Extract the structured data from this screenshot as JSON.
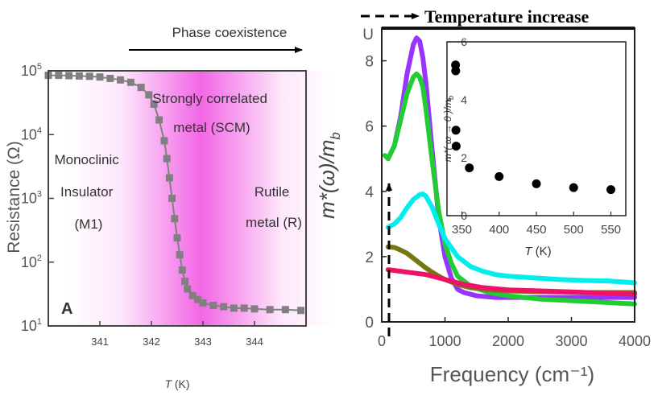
{
  "chart_data": [
    {
      "type": "line",
      "panel_label": "A",
      "xlabel": "T (K)",
      "xlabel_var": "T",
      "xlabel_unit": "(K)",
      "ylabel": "Resistance (Ω)",
      "xlim": [
        340.0,
        345.0
      ],
      "ylim_log10": [
        1,
        5
      ],
      "yscale": "log",
      "x_ticks": [
        341,
        342,
        343,
        344
      ],
      "y_ticks": [
        {
          "value": 100000,
          "base": "10",
          "exp": "5"
        },
        {
          "value": 10000,
          "base": "10",
          "exp": "4"
        },
        {
          "value": 1000,
          "base": "10",
          "exp": "3"
        },
        {
          "value": 100,
          "base": "10",
          "exp": "2"
        },
        {
          "value": 10,
          "base": "10",
          "exp": "1"
        }
      ],
      "top_annotation": "Phase coexistence",
      "regions": [
        {
          "lines": [
            "Monoclinic",
            "Insulator",
            "(M1)"
          ]
        },
        {
          "lines": [
            "Strongly correlated",
            "metal (SCM)"
          ]
        },
        {
          "lines": [
            "Rutile",
            "metal (R)"
          ]
        }
      ],
      "colors": {
        "data": "#808080",
        "shading": "#ee33dd",
        "text": "#333333"
      },
      "x": [
        340.0,
        340.2,
        340.4,
        340.6,
        340.8,
        341.0,
        341.2,
        341.4,
        341.6,
        341.8,
        341.95,
        342.05,
        342.15,
        342.25,
        342.3,
        342.35,
        342.4,
        342.45,
        342.5,
        342.55,
        342.6,
        342.65,
        342.7,
        342.8,
        342.9,
        343.0,
        343.2,
        343.4,
        343.6,
        343.8,
        344.0,
        344.3,
        344.6,
        344.9
      ],
      "y": [
        85000,
        85000,
        84000,
        83000,
        82000,
        80000,
        76000,
        72000,
        66000,
        55000,
        42000,
        30000,
        17000,
        8000,
        4200,
        2100,
        1000,
        480,
        240,
        130,
        75,
        50,
        38,
        30,
        26,
        23,
        21,
        20,
        19,
        19,
        18.5,
        18,
        18,
        17.5
      ]
    },
    {
      "type": "line",
      "xlabel": "Frequency (cm⁻¹)",
      "ylabel": "m*(ω)/m_b",
      "ylabel_main": "m*(ω)/m",
      "ylabel_sub": "b",
      "xlim": [
        0,
        4000
      ],
      "ylim": [
        0,
        9
      ],
      "x_ticks": [
        0,
        1000,
        2000,
        3000,
        4000
      ],
      "y_ticks": [
        0,
        2,
        4,
        6,
        8
      ],
      "y_top_tick_label": "U",
      "legend_annotation": "Temperature increase",
      "series": [
        {
          "color": "#9933ff",
          "x": [
            100,
            200,
            300,
            400,
            500,
            550,
            600,
            650,
            700,
            800,
            900,
            1000,
            1100,
            1200,
            1300,
            1500,
            1800,
            2200,
            2600,
            3000,
            3500,
            4000
          ],
          "y": [
            5.0,
            5.4,
            6.3,
            7.6,
            8.5,
            8.7,
            8.6,
            8.1,
            7.3,
            5.2,
            3.2,
            2.0,
            1.35,
            1.0,
            0.9,
            0.8,
            0.75,
            0.75,
            0.75,
            0.75,
            0.75,
            0.75
          ]
        },
        {
          "color": "#22cc33",
          "x": [
            50,
            100,
            200,
            300,
            400,
            500,
            550,
            600,
            650,
            700,
            800,
            900,
            1000,
            1100,
            1200,
            1400,
            1700,
            2000,
            2500,
            3000,
            3500,
            4000
          ],
          "y": [
            5.1,
            5.0,
            5.4,
            6.2,
            7.0,
            7.5,
            7.6,
            7.5,
            7.2,
            6.5,
            4.9,
            3.4,
            2.4,
            1.8,
            1.4,
            1.1,
            0.9,
            0.8,
            0.7,
            0.65,
            0.6,
            0.55
          ]
        },
        {
          "color": "#00eeee",
          "x": [
            100,
            200,
            300,
            400,
            500,
            600,
            650,
            700,
            800,
            900,
            1000,
            1200,
            1400,
            1600,
            1800,
            2000,
            2400,
            2800,
            3200,
            3600,
            4000
          ],
          "y": [
            2.9,
            3.0,
            3.2,
            3.5,
            3.75,
            3.9,
            3.92,
            3.85,
            3.5,
            3.0,
            2.55,
            2.0,
            1.7,
            1.55,
            1.45,
            1.4,
            1.35,
            1.3,
            1.27,
            1.25,
            1.2
          ]
        },
        {
          "color": "#777711",
          "x": [
            100,
            200,
            300,
            400,
            500,
            600,
            700,
            800,
            900,
            1000,
            1200,
            1400,
            1600,
            1800,
            2000,
            2400,
            2800,
            3200,
            3600,
            4000
          ],
          "y": [
            2.3,
            2.28,
            2.2,
            2.1,
            1.95,
            1.8,
            1.65,
            1.52,
            1.4,
            1.3,
            1.15,
            1.05,
            1.0,
            0.97,
            0.95,
            0.93,
            0.92,
            0.9,
            0.9,
            0.9
          ]
        },
        {
          "color": "#ee1166",
          "x": [
            100,
            300,
            500,
            700,
            900,
            1100,
            1300,
            1600,
            2000,
            2500,
            3000,
            3500,
            4000
          ],
          "y": [
            1.6,
            1.55,
            1.5,
            1.45,
            1.35,
            1.25,
            1.15,
            1.05,
            0.98,
            0.95,
            0.92,
            0.88,
            0.85
          ]
        }
      ]
    },
    {
      "type": "scatter",
      "xlabel": "T (K)",
      "xlabel_var": "T",
      "xlabel_unit": "(K)",
      "ylabel": "m*(ω → 0)/m_b",
      "ylabel_main": "m*( ω → 0 )/m",
      "ylabel_sub": "b",
      "xlim": [
        330,
        570
      ],
      "ylim": [
        0,
        6
      ],
      "x_ticks": [
        350,
        400,
        450,
        500,
        550
      ],
      "y_ticks": [
        0,
        2,
        4,
        6
      ],
      "x": [
        341.5,
        341.7,
        342,
        342.3,
        360,
        400,
        450,
        500,
        550
      ],
      "y": [
        5.2,
        5.0,
        2.95,
        2.4,
        1.65,
        1.35,
        1.1,
        0.97,
        0.9
      ]
    }
  ]
}
